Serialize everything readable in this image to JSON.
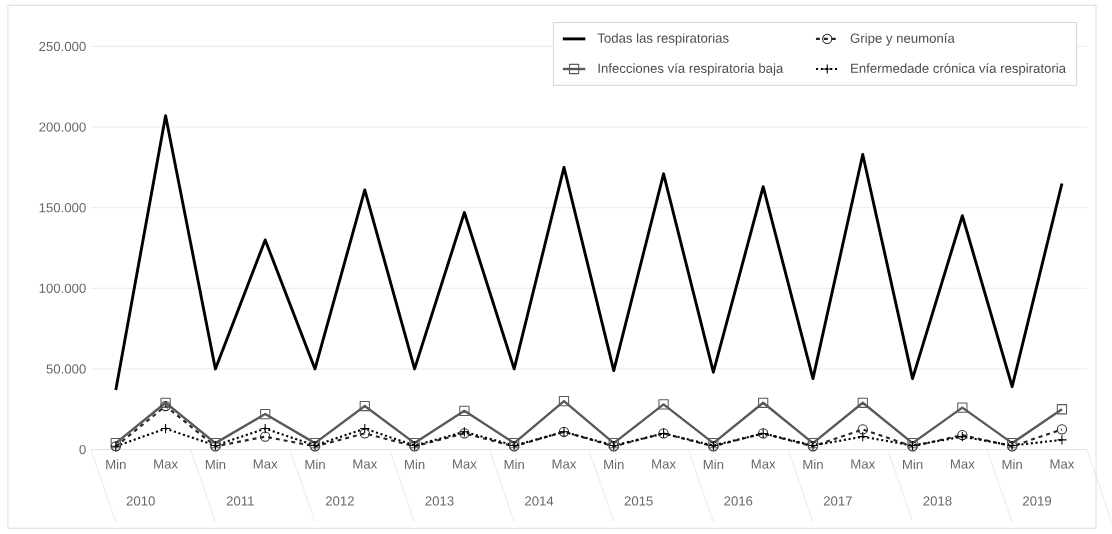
{
  "chart_data": {
    "type": "line",
    "categories": [
      "Min",
      "Max",
      "Min",
      "Max",
      "Min",
      "Max",
      "Min",
      "Max",
      "Min",
      "Max",
      "Min",
      "Max",
      "Min",
      "Max",
      "Min",
      "Max",
      "Min",
      "Max",
      "Min",
      "Max"
    ],
    "annotations": [
      "2010",
      "2011",
      "2012",
      "2013",
      "2014",
      "2015",
      "2016",
      "2017",
      "2018",
      "2019"
    ],
    "series": [
      {
        "name": "Todas las respiratorias",
        "color": "#000000",
        "marker": "none",
        "line_style": "solid",
        "values": [
          37000,
          207000,
          50000,
          130000,
          50000,
          161000,
          50000,
          147000,
          50000,
          175000,
          49000,
          171000,
          48000,
          163000,
          44000,
          183000,
          44000,
          145000,
          39000,
          165000
        ]
      },
      {
        "name": "Gripe y neumonía",
        "color": "#262626",
        "marker": "circle",
        "line_style": "dashed",
        "values": [
          2000,
          27000,
          2000,
          8000,
          2000,
          10000,
          2000,
          10000,
          2000,
          11000,
          2000,
          10000,
          2000,
          10000,
          2000,
          12500,
          2000,
          9000,
          2000,
          12500
        ]
      },
      {
        "name": "Infecciones vía respiratoria baja",
        "color": "#595959",
        "marker": "square",
        "line_style": "solid",
        "values": [
          4000,
          29000,
          4000,
          22000,
          4000,
          27000,
          4000,
          24000,
          4000,
          30000,
          4000,
          28000,
          4000,
          29000,
          4000,
          29000,
          4000,
          26000,
          4000,
          25000
        ]
      },
      {
        "name": "Enfermedade crónica vía respiratoria",
        "color": "#000000",
        "marker": "cross",
        "line_style": "dotted",
        "values": [
          2000,
          13000,
          2500,
          13000,
          2500,
          13000,
          2500,
          11000,
          2500,
          11000,
          2500,
          10000,
          2500,
          10000,
          2500,
          8000,
          2500,
          8000,
          2500,
          6000
        ]
      }
    ],
    "ylim": [
      0,
      250000
    ],
    "yticks": [
      {
        "value": 0,
        "label": "0"
      },
      {
        "value": 50000,
        "label": "50.000"
      },
      {
        "value": 100000,
        "label": "100.000"
      },
      {
        "value": 150000,
        "label": "150.000"
      },
      {
        "value": 200000,
        "label": "200.000"
      },
      {
        "value": 250000,
        "label": "250.000"
      }
    ],
    "grid": "y",
    "legend": "top right"
  }
}
